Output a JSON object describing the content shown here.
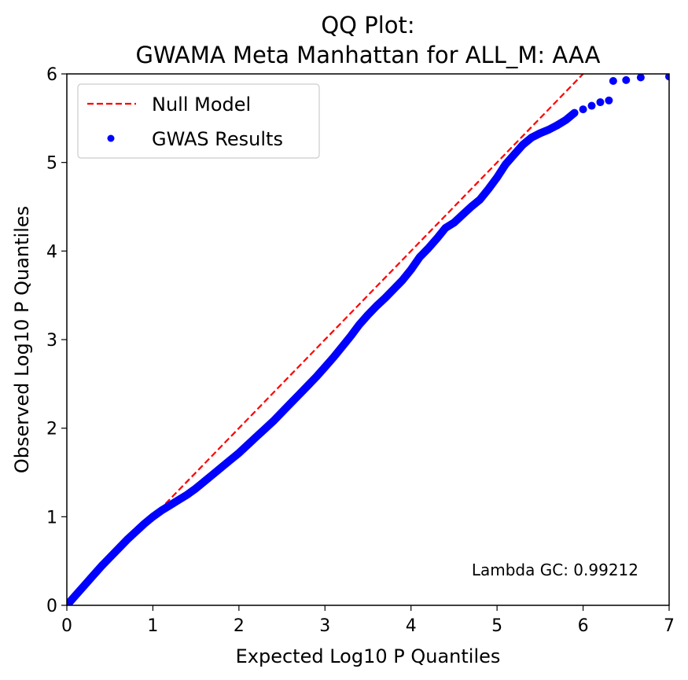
{
  "chart_data": {
    "type": "scatter",
    "title": [
      "QQ Plot:",
      "GWAMA Meta Manhattan for ALL_M: AAA"
    ],
    "xlabel": "Expected Log10 P Quantiles",
    "ylabel": "Observed Log10 P Quantiles",
    "xlim": [
      0,
      7
    ],
    "ylim": [
      0,
      6
    ],
    "x_ticks": [
      "0",
      "1",
      "2",
      "3",
      "4",
      "5",
      "6",
      "7"
    ],
    "y_ticks": [
      "0",
      "1",
      "2",
      "3",
      "4",
      "5",
      "6"
    ],
    "grid": false,
    "legend_placement": "top-left",
    "annotation": "Lambda GC: 0.99212",
    "series": [
      {
        "name": "Null Model",
        "kind": "line",
        "style": "dashed",
        "color": "#ff0000",
        "x": [
          0,
          7
        ],
        "y": [
          0,
          7
        ]
      },
      {
        "name": "GWAS Results",
        "kind": "scatter",
        "color": "#0000ff",
        "curve_x": [
          0,
          0.1,
          0.2,
          0.3,
          0.4,
          0.5,
          0.6,
          0.7,
          0.8,
          0.9,
          1.0,
          1.1,
          1.2,
          1.3,
          1.4,
          1.5,
          1.6,
          1.7,
          1.8,
          1.9,
          2.0,
          2.1,
          2.2,
          2.3,
          2.4,
          2.5,
          2.6,
          2.7,
          2.8,
          2.9,
          3.0,
          3.1,
          3.2,
          3.3,
          3.4,
          3.5,
          3.6,
          3.7,
          3.8,
          3.9,
          4.0,
          4.1,
          4.2,
          4.3,
          4.4,
          4.5,
          4.6,
          4.7,
          4.8,
          4.9,
          5.0,
          5.1,
          5.2,
          5.3,
          5.4,
          5.5,
          5.6,
          5.7,
          5.8,
          5.9
        ],
        "curve_y": [
          0,
          0.11,
          0.22,
          0.33,
          0.44,
          0.54,
          0.64,
          0.74,
          0.83,
          0.92,
          1.0,
          1.07,
          1.13,
          1.19,
          1.25,
          1.32,
          1.4,
          1.48,
          1.56,
          1.64,
          1.72,
          1.81,
          1.9,
          1.99,
          2.08,
          2.18,
          2.28,
          2.38,
          2.48,
          2.58,
          2.69,
          2.8,
          2.92,
          3.04,
          3.17,
          3.28,
          3.38,
          3.47,
          3.57,
          3.67,
          3.79,
          3.93,
          4.03,
          4.14,
          4.26,
          4.32,
          4.41,
          4.5,
          4.58,
          4.7,
          4.83,
          4.98,
          5.09,
          5.2,
          5.28,
          5.33,
          5.37,
          5.42,
          5.48,
          5.56
        ],
        "tail_points": [
          [
            6.0,
            5.6
          ],
          [
            6.1,
            5.64
          ],
          [
            6.2,
            5.68
          ],
          [
            6.3,
            5.7
          ],
          [
            6.35,
            5.92
          ],
          [
            6.5,
            5.93
          ],
          [
            6.67,
            5.96
          ],
          [
            7.0,
            5.97
          ]
        ]
      }
    ]
  }
}
